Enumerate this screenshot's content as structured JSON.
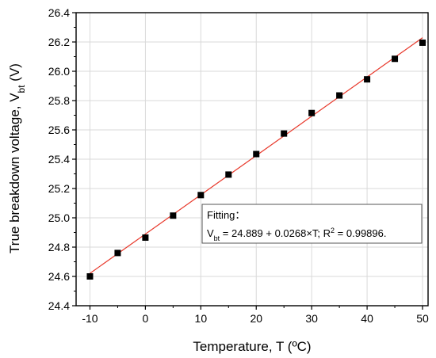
{
  "chart_data": {
    "type": "scatter",
    "xlabel": "Temperature, T (ºC)",
    "ylabel_main": "True breakdown voltage, V",
    "ylabel_sub": "bt",
    "ylabel_unit": " (V)",
    "xlim": [
      -12.5,
      51
    ],
    "ylim": [
      24.4,
      26.4
    ],
    "xticks": [
      -10,
      0,
      10,
      20,
      30,
      40,
      50
    ],
    "yticks": [
      24.4,
      24.6,
      24.8,
      25.0,
      25.2,
      25.4,
      25.6,
      25.8,
      26.0,
      26.2,
      26.4
    ],
    "x_minor_ticks": [
      -5,
      5,
      15,
      25,
      35,
      45
    ],
    "y_minor_ticks": [
      24.5,
      24.7,
      24.9,
      25.1,
      25.3,
      25.5,
      25.7,
      25.9,
      26.1,
      26.3
    ],
    "grid": true,
    "series": [
      {
        "marker": "square",
        "color": "#000000",
        "x": [
          -10,
          -5,
          0,
          5,
          10,
          15,
          20,
          25,
          30,
          35,
          40,
          45,
          50
        ],
        "y": [
          24.6,
          24.76,
          24.865,
          25.015,
          25.155,
          25.295,
          25.435,
          25.575,
          25.715,
          25.835,
          25.945,
          26.085,
          26.195
        ]
      }
    ],
    "fit": {
      "color": "#e8392c",
      "intercept": 24.889,
      "slope": 0.0268,
      "x_range": [
        -10,
        50
      ]
    },
    "annotation": {
      "heading": "Fitting：",
      "line_prefix": "V",
      "line_sub": "bt",
      "line_mid": " = 24.889 + 0.0268×T; R",
      "line_sup": "2",
      "line_suffix": " = 0.99896."
    }
  }
}
